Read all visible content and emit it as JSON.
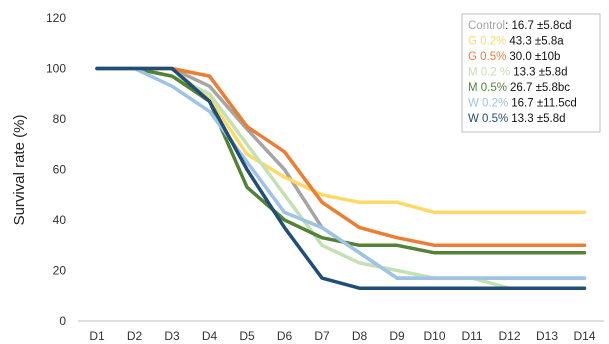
{
  "chart_data": {
    "type": "line",
    "ylabel": "Survival rate (%)",
    "xlabel": "",
    "ylim": [
      0,
      120
    ],
    "yticks": [
      0,
      20,
      40,
      60,
      80,
      100,
      120
    ],
    "grid": false,
    "legend_position": "top-right",
    "categories": [
      "D1",
      "D2",
      "D3",
      "D4",
      "D5",
      "D6",
      "D7",
      "D8",
      "D9",
      "D10",
      "D11",
      "D12",
      "D13",
      "D14"
    ],
    "series": [
      {
        "name": "Control",
        "stat": ": 16.7 ±5.8cd",
        "color": "#a5a5a5",
        "values": [
          100,
          100,
          100,
          93,
          76,
          60,
          37,
          27,
          17,
          17,
          17,
          17,
          17,
          17
        ]
      },
      {
        "name": "G 0.2%",
        "stat": "43.3 ±5.8a",
        "color": "#ffd966",
        "values": [
          100,
          100,
          100,
          88,
          66,
          57,
          50,
          47,
          47,
          43,
          43,
          43,
          43,
          43
        ]
      },
      {
        "name": "G 0.5%",
        "stat": "30.0 ±10b",
        "color": "#ed7d31",
        "values": [
          100,
          100,
          100,
          97,
          77,
          67,
          47,
          37,
          33,
          30,
          30,
          30,
          30,
          30
        ]
      },
      {
        "name": "M 0.2 %",
        "stat": "13.3 ±5.8d",
        "color": "#c5e0b4",
        "values": [
          100,
          100,
          97,
          90,
          70,
          50,
          30,
          23,
          20,
          17,
          17,
          13,
          13,
          13
        ]
      },
      {
        "name": "M 0.5%",
        "stat": "26.7 ±5.8bc",
        "color": "#548235",
        "values": [
          100,
          100,
          97,
          87,
          53,
          40,
          33,
          30,
          30,
          27,
          27,
          27,
          27,
          27
        ]
      },
      {
        "name": "W 0.2%",
        "stat": "16.7 ±11.5cd",
        "color": "#9dc3e6",
        "values": [
          100,
          100,
          93,
          83,
          63,
          43,
          37,
          27,
          17,
          17,
          17,
          17,
          17,
          17
        ]
      },
      {
        "name": "W 0.5%",
        "stat": "13.3 ±5.8d",
        "color": "#1f4e79",
        "values": [
          100,
          100,
          100,
          87,
          60,
          37,
          17,
          13,
          13,
          13,
          13,
          13,
          13,
          13
        ]
      }
    ]
  }
}
